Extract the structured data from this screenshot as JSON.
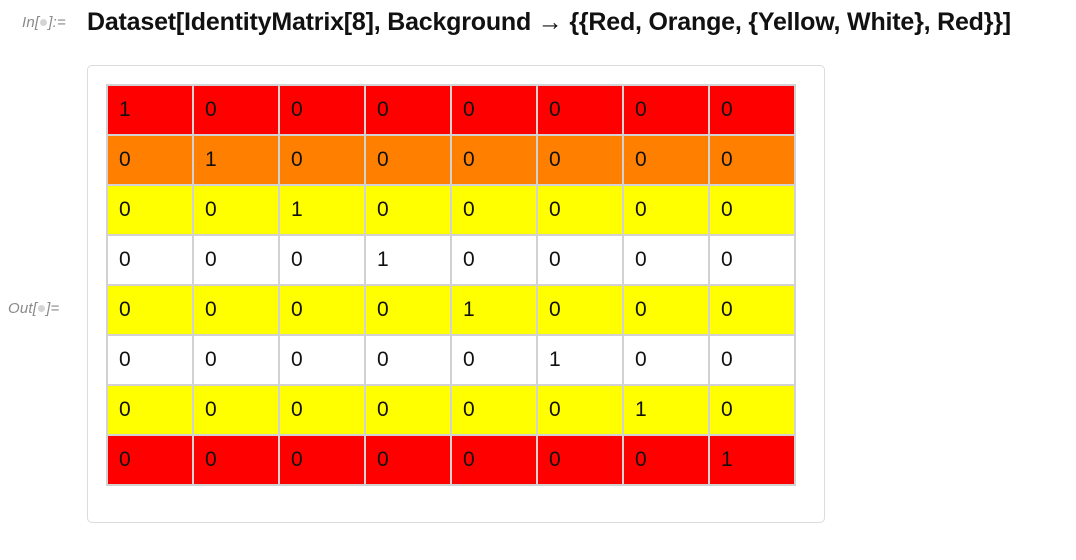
{
  "input": {
    "label_prefix": "In[",
    "label_suffix": "]:=",
    "code": "Dataset[IdentityMatrix[8], Background → {{Red, Orange, {Yellow, White}, Red}}]"
  },
  "output": {
    "label_prefix": "Out[",
    "label_suffix": "]=",
    "table": {
      "rows": [
        {
          "background": "#ff0000",
          "cells": [
            "1",
            "0",
            "0",
            "0",
            "0",
            "0",
            "0",
            "0"
          ]
        },
        {
          "background": "#ff8000",
          "cells": [
            "0",
            "1",
            "0",
            "0",
            "0",
            "0",
            "0",
            "0"
          ]
        },
        {
          "background": "#ffff00",
          "cells": [
            "0",
            "0",
            "1",
            "0",
            "0",
            "0",
            "0",
            "0"
          ]
        },
        {
          "background": "#ffffff",
          "cells": [
            "0",
            "0",
            "0",
            "1",
            "0",
            "0",
            "0",
            "0"
          ]
        },
        {
          "background": "#ffff00",
          "cells": [
            "0",
            "0",
            "0",
            "0",
            "1",
            "0",
            "0",
            "0"
          ]
        },
        {
          "background": "#ffffff",
          "cells": [
            "0",
            "0",
            "0",
            "0",
            "0",
            "1",
            "0",
            "0"
          ]
        },
        {
          "background": "#ffff00",
          "cells": [
            "0",
            "0",
            "0",
            "0",
            "0",
            "0",
            "1",
            "0"
          ]
        },
        {
          "background": "#ff0000",
          "cells": [
            "0",
            "0",
            "0",
            "0",
            "0",
            "0",
            "0",
            "1"
          ]
        }
      ]
    }
  }
}
